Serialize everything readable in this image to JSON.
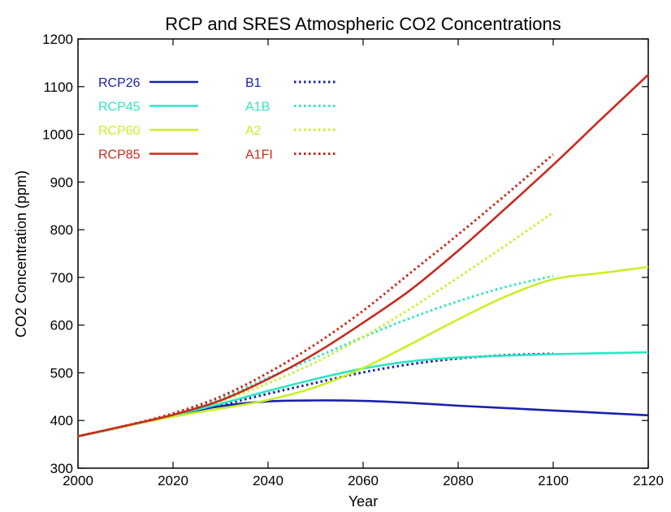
{
  "chart_data": {
    "type": "line",
    "title": "RCP and SRES Atmospheric CO2 Concentrations",
    "xlabel": "Year",
    "ylabel": "CO2 Concentration (ppm)",
    "xlim": [
      2000,
      2120
    ],
    "ylim": [
      300,
      1200
    ],
    "xticks": [
      2000,
      2020,
      2040,
      2060,
      2080,
      2100,
      2120
    ],
    "yticks": [
      300,
      400,
      500,
      600,
      700,
      800,
      900,
      1000,
      1100,
      1200
    ],
    "grid": false,
    "legend_position": "top-left",
    "series": [
      {
        "name": "RCP26",
        "color": "#1a22a8",
        "style": "solid",
        "x": [
          2000,
          2010,
          2020,
          2030,
          2040,
          2050,
          2060,
          2070,
          2080,
          2090,
          2100,
          2110,
          2120
        ],
        "y": [
          367,
          388,
          411,
          430,
          440,
          442,
          441,
          437,
          431,
          426,
          421,
          416,
          411
        ]
      },
      {
        "name": "RCP45",
        "color": "#2ee6c2",
        "style": "solid",
        "x": [
          2000,
          2010,
          2020,
          2030,
          2040,
          2050,
          2060,
          2070,
          2080,
          2090,
          2100,
          2110,
          2120
        ],
        "y": [
          367,
          388,
          411,
          435,
          462,
          487,
          509,
          524,
          532,
          536,
          539,
          541,
          543
        ]
      },
      {
        "name": "RCP60",
        "color": "#c8f026",
        "style": "solid",
        "x": [
          2000,
          2010,
          2020,
          2030,
          2040,
          2050,
          2060,
          2070,
          2080,
          2090,
          2100,
          2110,
          2120
        ],
        "y": [
          367,
          388,
          408,
          425,
          443,
          470,
          510,
          560,
          612,
          660,
          696,
          709,
          722
        ]
      },
      {
        "name": "RCP85",
        "color": "#c82a1e",
        "style": "solid",
        "x": [
          2000,
          2010,
          2020,
          2030,
          2040,
          2050,
          2060,
          2070,
          2080,
          2090,
          2100,
          2110,
          2120
        ],
        "y": [
          367,
          389,
          412,
          442,
          487,
          541,
          605,
          674,
          756,
          845,
          936,
          1031,
          1125
        ]
      },
      {
        "name": "B1",
        "color": "#1a22a8",
        "style": "dotted",
        "x": [
          2000,
          2010,
          2020,
          2030,
          2040,
          2050,
          2060,
          2070,
          2080,
          2090,
          2100
        ],
        "y": [
          367,
          388,
          410,
          432,
          456,
          479,
          501,
          518,
          530,
          537,
          540
        ]
      },
      {
        "name": "A1B",
        "color": "#2ee6c2",
        "style": "dotted",
        "x": [
          2000,
          2010,
          2020,
          2030,
          2040,
          2050,
          2060,
          2070,
          2080,
          2090,
          2100
        ],
        "y": [
          367,
          388,
          413,
          445,
          490,
          532,
          575,
          615,
          650,
          680,
          703
        ]
      },
      {
        "name": "A2",
        "color": "#c8f026",
        "style": "dotted",
        "x": [
          2000,
          2010,
          2020,
          2030,
          2040,
          2050,
          2060,
          2070,
          2080,
          2090,
          2100
        ],
        "y": [
          367,
          388,
          412,
          440,
          478,
          522,
          575,
          635,
          700,
          767,
          836
        ]
      },
      {
        "name": "A1FI",
        "color": "#c82a1e",
        "style": "dotted",
        "x": [
          2000,
          2010,
          2020,
          2030,
          2040,
          2050,
          2060,
          2070,
          2080,
          2090,
          2100
        ],
        "y": [
          367,
          389,
          415,
          450,
          500,
          560,
          630,
          710,
          790,
          873,
          958
        ]
      }
    ]
  }
}
